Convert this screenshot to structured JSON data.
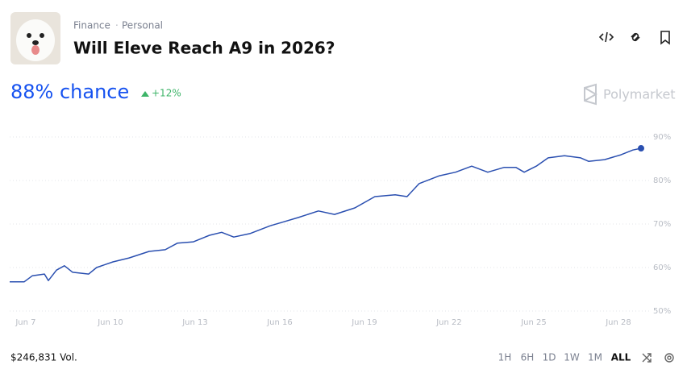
{
  "header": {
    "breadcrumb": [
      "Finance",
      "Personal"
    ],
    "title": "Will Eleve Reach A9 in 2026?"
  },
  "summary": {
    "chance": "88% chance",
    "change": "+12%"
  },
  "brand": "Polymarket",
  "chart_data": {
    "type": "line",
    "x": [
      6.43,
      6.94,
      7.23,
      7.66,
      7.8,
      8.09,
      8.37,
      8.66,
      9.23,
      9.51,
      10.09,
      10.66,
      11.37,
      11.94,
      12.37,
      12.94,
      13.51,
      13.94,
      14.37,
      14.94,
      15.66,
      16.09,
      16.66,
      17.37,
      17.94,
      18.66,
      19.37,
      20.09,
      20.51,
      20.94,
      21.66,
      22.23,
      22.8,
      23.37,
      23.94,
      24.37,
      24.66,
      25.09,
      25.51,
      26.09,
      26.66,
      26.94,
      27.51,
      28.09,
      28.51,
      28.8
    ],
    "values": [
      56.7,
      56.7,
      58.1,
      58.5,
      57,
      59.4,
      60.4,
      58.9,
      58.5,
      60,
      61.3,
      62.2,
      63.7,
      64.1,
      65.6,
      65.9,
      67.4,
      68.1,
      67,
      67.8,
      69.6,
      70.4,
      71.5,
      73,
      72.2,
      73.7,
      76.3,
      76.7,
      76.3,
      79.3,
      81.1,
      81.9,
      83.3,
      81.9,
      83,
      83,
      81.9,
      83.3,
      85.2,
      85.7,
      85.2,
      84.4,
      84.8,
      85.9,
      87,
      87.4
    ],
    "color": "#2a4fb0",
    "xlim": [
      6.43,
      28.8
    ],
    "xticks": [
      {
        "value": 7,
        "label": "Jun 7"
      },
      {
        "value": 10,
        "label": "Jun 10"
      },
      {
        "value": 13,
        "label": "Jun 13"
      },
      {
        "value": 16,
        "label": "Jun 16"
      },
      {
        "value": 19,
        "label": "Jun 19"
      },
      {
        "value": 22,
        "label": "Jun 22"
      },
      {
        "value": 25,
        "label": "Jun 25"
      },
      {
        "value": 28,
        "label": "Jun 28"
      }
    ],
    "ylim": [
      50,
      90
    ],
    "yticks": [
      {
        "value": 50,
        "label": "50%"
      },
      {
        "value": 60,
        "label": "60%"
      },
      {
        "value": 70,
        "label": "70%"
      },
      {
        "value": 80,
        "label": "80%"
      },
      {
        "value": 90,
        "label": "90%"
      }
    ],
    "grid": true
  },
  "footer": {
    "volume": "$246,831 Vol.",
    "ranges": [
      "1H",
      "6H",
      "1D",
      "1W",
      "1M",
      "ALL"
    ],
    "selected": 5
  }
}
